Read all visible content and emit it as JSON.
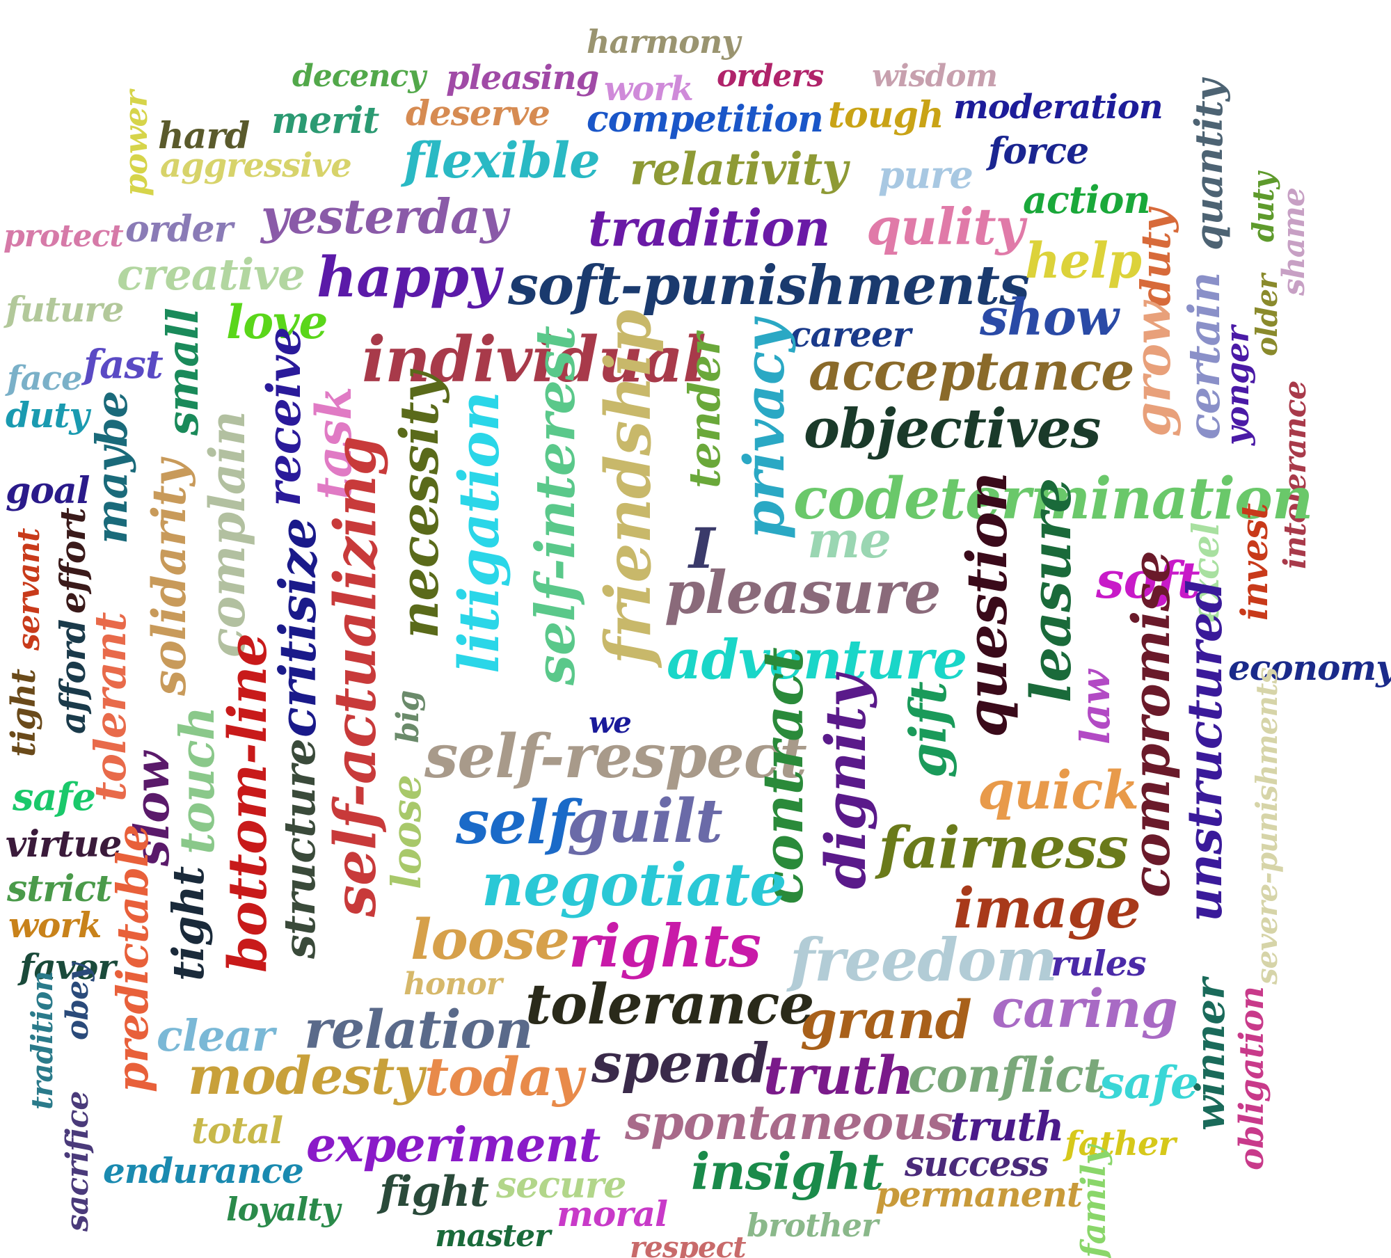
{
  "words": [
    {
      "id": "harmony",
      "text": "harmony",
      "color": "#9a9470"
    },
    {
      "id": "decency",
      "text": "decency",
      "color": "#52a84a"
    },
    {
      "id": "pleasing",
      "text": "pleasing",
      "color": "#a04aa6"
    },
    {
      "id": "work-top",
      "text": "work",
      "color": "#cf8ad9"
    },
    {
      "id": "orders",
      "text": "orders",
      "color": "#b0236a"
    },
    {
      "id": "wisdom",
      "text": "wisdom",
      "color": "#c7a0ae"
    },
    {
      "id": "moderation",
      "text": "moderation",
      "color": "#1d1c99"
    },
    {
      "id": "power",
      "text": "power",
      "color": "#d6d44a"
    },
    {
      "id": "hard",
      "text": "hard",
      "color": "#5a5a2c"
    },
    {
      "id": "merit",
      "text": "merit",
      "color": "#2b9a72"
    },
    {
      "id": "deserve",
      "text": "deserve",
      "color": "#d68b52"
    },
    {
      "id": "competition",
      "text": "competition",
      "color": "#1a56c8"
    },
    {
      "id": "tough",
      "text": "tough",
      "color": "#c9a316"
    },
    {
      "id": "quantity",
      "text": "quantity",
      "color": "#4d6373"
    },
    {
      "id": "aggressive",
      "text": "aggressive",
      "color": "#d7d36a"
    },
    {
      "id": "flexible",
      "text": "flexible",
      "color": "#2ab9c4"
    },
    {
      "id": "relativity",
      "text": "relativity",
      "color": "#8e9a35"
    },
    {
      "id": "force",
      "text": "force",
      "color": "#1a2590"
    },
    {
      "id": "pure",
      "text": "pure",
      "color": "#a8c8e2"
    },
    {
      "id": "duty-right",
      "text": "duty",
      "color": "#5e9a2c"
    },
    {
      "id": "protect",
      "text": "protect",
      "color": "#d67aa8"
    },
    {
      "id": "order",
      "text": "order",
      "color": "#8a7bb6"
    },
    {
      "id": "yesterday",
      "text": "yesterday",
      "color": "#8a5aa8"
    },
    {
      "id": "tradition-top",
      "text": "tradition",
      "color": "#6a1aa6"
    },
    {
      "id": "qulity",
      "text": "qulity",
      "color": "#e07aa8"
    },
    {
      "id": "action",
      "text": "action",
      "color": "#1aa83a"
    },
    {
      "id": "duty-orange",
      "text": "duty",
      "color": "#d76a3a"
    },
    {
      "id": "shame",
      "text": "shame",
      "color": "#c7a0c4"
    },
    {
      "id": "creative",
      "text": "creative",
      "color": "#b2d6a0"
    },
    {
      "id": "happy",
      "text": "happy",
      "color": "#5b1aa8"
    },
    {
      "id": "soft-punishments",
      "text": "soft-punishments",
      "color": "#1a3a6e"
    },
    {
      "id": "help",
      "text": "help",
      "color": "#dcd23a"
    },
    {
      "id": "future",
      "text": "future",
      "color": "#b2c89a"
    },
    {
      "id": "love",
      "text": "love",
      "color": "#5ad61a"
    },
    {
      "id": "show",
      "text": "show",
      "color": "#2a4aa6"
    },
    {
      "id": "older",
      "text": "older",
      "color": "#8a8a2c"
    },
    {
      "id": "career",
      "text": "career",
      "color": "#1a3a8a"
    },
    {
      "id": "fast",
      "text": "fast",
      "color": "#5a4ac4"
    },
    {
      "id": "small",
      "text": "small",
      "color": "#1a8a5a"
    },
    {
      "id": "receive",
      "text": "receive",
      "color": "#2a1a9a"
    },
    {
      "id": "individual",
      "text": "individual",
      "color": "#a83a4a"
    },
    {
      "id": "acceptance",
      "text": "acceptance",
      "color": "#8a6a2a"
    },
    {
      "id": "grow",
      "text": "grow",
      "color": "#e8a07a"
    },
    {
      "id": "certain",
      "text": "certain",
      "color": "#8a90c8"
    },
    {
      "id": "face",
      "text": "face",
      "color": "#7ab0c8"
    },
    {
      "id": "yonger",
      "text": "yonger",
      "color": "#4a1aa6"
    },
    {
      "id": "duty-left",
      "text": "duty",
      "color": "#1a9ab0"
    },
    {
      "id": "maybe",
      "text": "maybe",
      "color": "#1a6a7a"
    },
    {
      "id": "task",
      "text": "task",
      "color": "#e07ac4"
    },
    {
      "id": "tender",
      "text": "tender",
      "color": "#6aa83a"
    },
    {
      "id": "privacy",
      "text": "privacy",
      "color": "#2aa8c4"
    },
    {
      "id": "objectives",
      "text": "objectives",
      "color": "#1a3a2a"
    },
    {
      "id": "intolerance",
      "text": "intolerance",
      "color": "#a83a4a"
    },
    {
      "id": "complain",
      "text": "complain",
      "color": "#b2c0a0"
    },
    {
      "id": "necessity",
      "text": "necessity",
      "color": "#5a6a1a"
    },
    {
      "id": "litigation",
      "text": "litigation",
      "color": "#2ad6e8"
    },
    {
      "id": "self-interest",
      "text": "self-interest",
      "color": "#5ac88a"
    },
    {
      "id": "friendship",
      "text": "friendship",
      "color": "#c8b86a"
    },
    {
      "id": "goal",
      "text": "goal",
      "color": "#2a1a8a"
    },
    {
      "id": "solidarity",
      "text": "solidarity",
      "color": "#c89a5a"
    },
    {
      "id": "codetermination",
      "text": "codetermination",
      "color": "#6ac86a"
    },
    {
      "id": "critisize",
      "text": "critisize",
      "color": "#1a1a8a"
    },
    {
      "id": "servant",
      "text": "servant",
      "color": "#c83a1a"
    },
    {
      "id": "effort",
      "text": "effort",
      "color": "#3a1a1a"
    },
    {
      "id": "self-actualizing",
      "text": "self-actualizing",
      "color": "#c83a3a"
    },
    {
      "id": "i",
      "text": "I",
      "color": "#3a3a6a"
    },
    {
      "id": "me",
      "text": "me",
      "color": "#9ad6b2"
    },
    {
      "id": "question",
      "text": "question",
      "color": "#3a0a1a"
    },
    {
      "id": "leasure",
      "text": "leasure",
      "color": "#1a6a3a"
    },
    {
      "id": "soft",
      "text": "soft",
      "color": "#c81ac8"
    },
    {
      "id": "excel",
      "text": "excel",
      "color": "#a8e0a0"
    },
    {
      "id": "invest",
      "text": "invest",
      "color": "#c83a1a"
    },
    {
      "id": "pleasure",
      "text": "pleasure",
      "color": "#8a6a7a"
    },
    {
      "id": "afford",
      "text": "afford",
      "color": "#1a3a4a"
    },
    {
      "id": "tolerant",
      "text": "tolerant",
      "color": "#e86a4a"
    },
    {
      "id": "adventure",
      "text": "adventure",
      "color": "#1ad6c8"
    },
    {
      "id": "compromise",
      "text": "compromise",
      "color": "#6a1a2a"
    },
    {
      "id": "unstructured",
      "text": "unstructured",
      "color": "#3a1a9a"
    },
    {
      "id": "economy",
      "text": "economy",
      "color": "#1a2a8a"
    },
    {
      "id": "tight-left",
      "text": "tight",
      "color": "#6a4a1a"
    },
    {
      "id": "big",
      "text": "big",
      "color": "#6a8a6a"
    },
    {
      "id": "we",
      "text": "we",
      "color": "#1a1a9a"
    },
    {
      "id": "law",
      "text": "law",
      "color": "#b24ac4"
    },
    {
      "id": "severe-punishments",
      "text": "severe-punishments",
      "color": "#d6d4a8"
    },
    {
      "id": "self-respect",
      "text": "self-respect",
      "color": "#a89a8a"
    },
    {
      "id": "contract",
      "text": "contract",
      "color": "#2a8a3a"
    },
    {
      "id": "dignity",
      "text": "dignity",
      "color": "#5a1a8a"
    },
    {
      "id": "gift",
      "text": "gift",
      "color": "#1a9a5a"
    },
    {
      "id": "slow",
      "text": "slow",
      "color": "#5a1a6a"
    },
    {
      "id": "touch",
      "text": "touch",
      "color": "#8ac88a"
    },
    {
      "id": "bottom-line",
      "text": "bottom-line",
      "color": "#c81a1a"
    },
    {
      "id": "safe-left",
      "text": "safe",
      "color": "#1ac86a"
    },
    {
      "id": "quick",
      "text": "quick",
      "color": "#e89a4a"
    },
    {
      "id": "self",
      "text": "self",
      "color": "#1a6ac8"
    },
    {
      "id": "guilt",
      "text": "guilt",
      "color": "#6a6aa8"
    },
    {
      "id": "loose-vertical",
      "text": "loose",
      "color": "#a8c86a"
    },
    {
      "id": "structure",
      "text": "structure",
      "color": "#3a4a3a"
    },
    {
      "id": "virtue",
      "text": "virtue",
      "color": "#3a1a3a"
    },
    {
      "id": "fairness",
      "text": "fairness",
      "color": "#6a7a1a"
    },
    {
      "id": "strict",
      "text": "strict",
      "color": "#4a9a4a"
    },
    {
      "id": "negotiate",
      "text": "negotiate",
      "color": "#2ac8d6"
    },
    {
      "id": "predictable",
      "text": "predictable",
      "color": "#e8603a"
    },
    {
      "id": "image",
      "text": "image",
      "color": "#a83a1a"
    },
    {
      "id": "work-left",
      "text": "work",
      "color": "#c8821a"
    },
    {
      "id": "tight-mid",
      "text": "tight",
      "color": "#1a2a3a"
    },
    {
      "id": "loose",
      "text": "loose",
      "color": "#d6a04a"
    },
    {
      "id": "rights",
      "text": "rights",
      "color": "#c81aa8"
    },
    {
      "id": "favor",
      "text": "favor",
      "color": "#1a4a3a"
    },
    {
      "id": "freedom",
      "text": "freedom",
      "color": "#b2ccd6"
    },
    {
      "id": "rules",
      "text": "rules",
      "color": "#4a2aa8"
    },
    {
      "id": "honor",
      "text": "honor",
      "color": "#d6b86a"
    },
    {
      "id": "tolerance",
      "text": "tolerance",
      "color": "#2a2a1a"
    },
    {
      "id": "tradition-left",
      "text": "tradition",
      "color": "#2a7a8a"
    },
    {
      "id": "obey",
      "text": "obey",
      "color": "#2a4a7a"
    },
    {
      "id": "clear",
      "text": "clear",
      "color": "#7ab8d6"
    },
    {
      "id": "relation",
      "text": "relation",
      "color": "#5a6a8a"
    },
    {
      "id": "grand",
      "text": "grand",
      "color": "#a8601a"
    },
    {
      "id": "caring",
      "text": "caring",
      "color": "#a86ac4"
    },
    {
      "id": "winner",
      "text": "winner",
      "color": "#1a6a5a"
    },
    {
      "id": "obligation",
      "text": "obligation",
      "color": "#c83a8a"
    },
    {
      "id": "spend",
      "text": "spend",
      "color": "#3a2a4a"
    },
    {
      "id": "modesty",
      "text": "modesty",
      "color": "#c8a03a"
    },
    {
      "id": "today",
      "text": "today",
      "color": "#e88a4a"
    },
    {
      "id": "truth-big",
      "text": "truth",
      "color": "#7a1a8a"
    },
    {
      "id": "conflict",
      "text": "conflict",
      "color": "#7aa87a"
    },
    {
      "id": "safe-right",
      "text": "safe",
      "color": "#3ad6d6"
    },
    {
      "id": "sacrifice",
      "text": "sacrifice",
      "color": "#4a3a7a"
    },
    {
      "id": "spontaneous",
      "text": "spontaneous",
      "color": "#a86a8a"
    },
    {
      "id": "truth-small",
      "text": "truth",
      "color": "#4a1a8a"
    },
    {
      "id": "total",
      "text": "total",
      "color": "#c8b84a"
    },
    {
      "id": "experiment",
      "text": "experiment",
      "color": "#8a1ac8"
    },
    {
      "id": "father",
      "text": "father",
      "color": "#d6c81a"
    },
    {
      "id": "endurance",
      "text": "endurance",
      "color": "#1a8ab0"
    },
    {
      "id": "success",
      "text": "success",
      "color": "#4a2a7a"
    },
    {
      "id": "insight",
      "text": "insight",
      "color": "#1a8a4a"
    },
    {
      "id": "fight",
      "text": "fight",
      "color": "#2a4a3a"
    },
    {
      "id": "secure",
      "text": "secure",
      "color": "#b2d68a"
    },
    {
      "id": "permanent",
      "text": "permanent",
      "color": "#c89a3a"
    },
    {
      "id": "family",
      "text": "family",
      "color": "#8ad66a"
    },
    {
      "id": "loyalty",
      "text": "loyalty",
      "color": "#2a8a4a"
    },
    {
      "id": "moral",
      "text": "moral",
      "color": "#c83ac8"
    },
    {
      "id": "brother",
      "text": "brother",
      "color": "#8ab88a"
    },
    {
      "id": "master",
      "text": "master",
      "color": "#1a6a3a"
    },
    {
      "id": "respect",
      "text": "respect",
      "color": "#c86a6a"
    }
  ]
}
